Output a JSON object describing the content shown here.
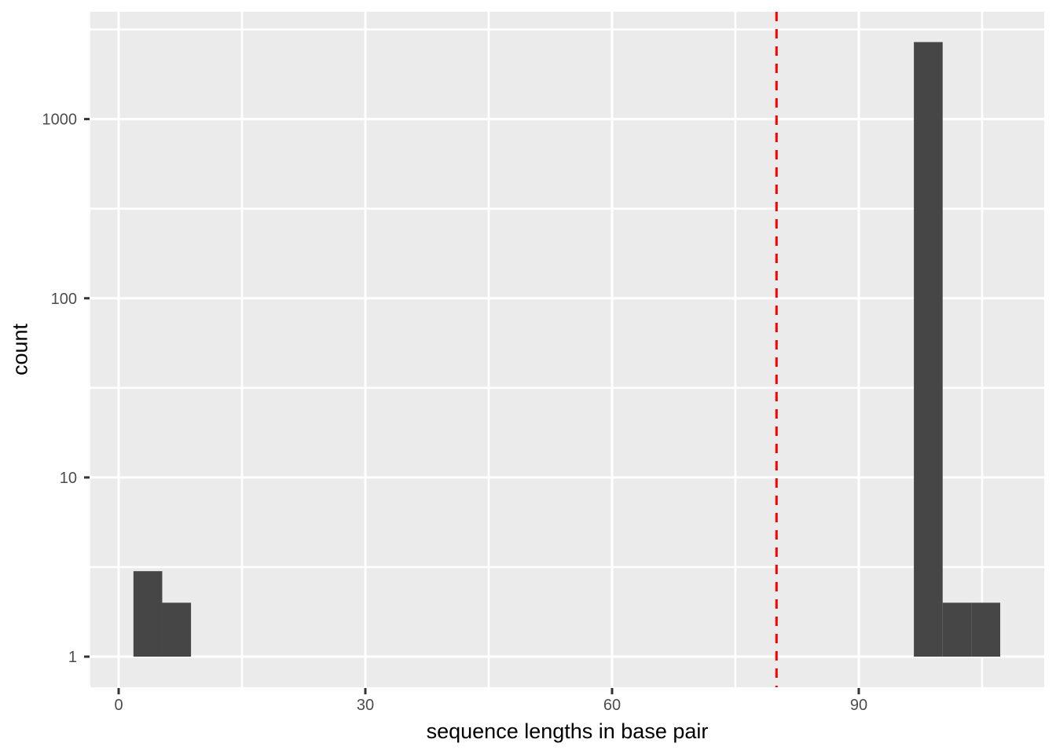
{
  "chart_data": {
    "type": "bar",
    "subtype": "histogram",
    "title": "",
    "xlabel": "sequence lengths in base pair",
    "ylabel": "count",
    "x_axis": {
      "range": [
        -3.44,
        112.55
      ],
      "ticks": [
        0,
        30,
        60,
        90
      ],
      "tick_labels": [
        "0",
        "30",
        "60",
        "90"
      ],
      "minor_ticks": [
        15,
        45,
        75,
        105
      ]
    },
    "y_axis": {
      "scale": "log10",
      "range": [
        0.675,
        3970
      ],
      "ticks": [
        1,
        10,
        100,
        1000
      ],
      "tick_labels": [
        "1",
        "10",
        "100",
        "1000"
      ],
      "minor_ticks": [
        3.162,
        31.62,
        316.2,
        3162
      ]
    },
    "binwidth": 3.5,
    "bars": [
      {
        "x_start": 1.8,
        "x_end": 5.3,
        "count": 3
      },
      {
        "x_start": 5.3,
        "x_end": 8.8,
        "count": 2
      },
      {
        "x_start": 96.7,
        "x_end": 100.2,
        "count": 2690
      },
      {
        "x_start": 100.2,
        "x_end": 103.7,
        "count": 2
      },
      {
        "x_start": 103.7,
        "x_end": 107.2,
        "count": 2
      }
    ],
    "reference_line": {
      "x": 80,
      "style": "dashed",
      "color": "#FF0000"
    },
    "grid": true,
    "legend": "none",
    "colors": {
      "bar_fill": "#464646",
      "panel_background": "#EBEBEB",
      "gridline": "#FFFFFF",
      "axis_text": "#4D4D4D",
      "axis_title": "#000000",
      "tick_mark": "#333333",
      "background": "#FFFFFF"
    }
  }
}
